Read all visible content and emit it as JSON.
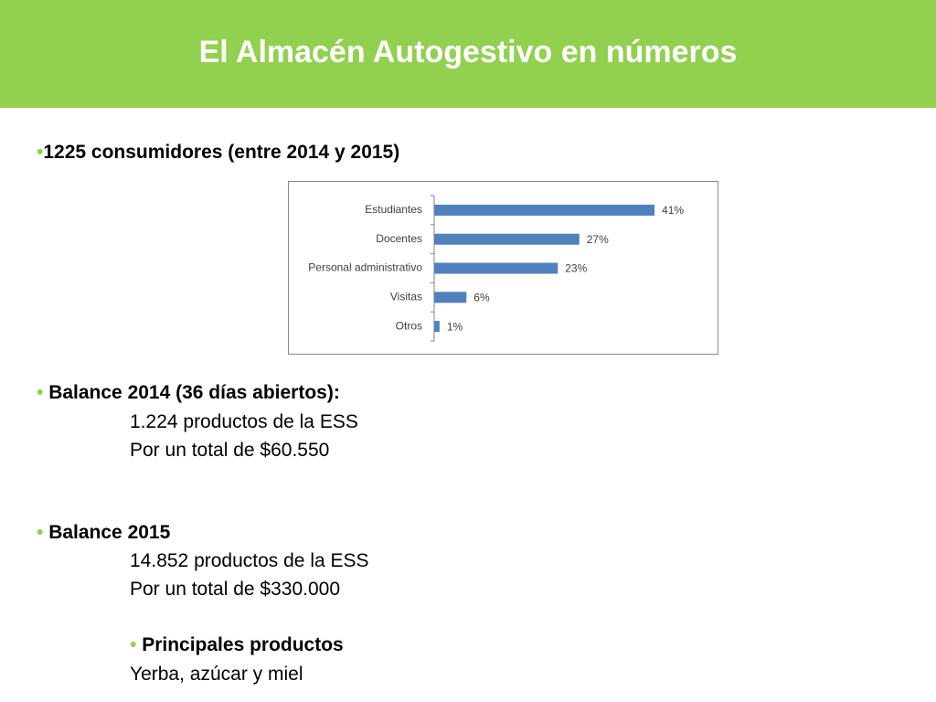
{
  "header": {
    "title": "El Almacén Autogestivo en números"
  },
  "body": {
    "consumers": "1225 consumidores (entre 2014 y 2015)",
    "balance_2014": {
      "heading": "Balance 2014 (36 días abiertos):",
      "lines": [
        "1.224 productos de la ESS",
        "Por un total de $60.550"
      ]
    },
    "balance_2015": {
      "heading": "Balance 2015",
      "lines": [
        "14.852 productos de la ESS",
        "Por un total de $330.000"
      ]
    },
    "products": {
      "heading": "Principales productos",
      "lines": [
        "Yerba, azúcar y miel"
      ]
    }
  },
  "chart_data": {
    "type": "hbar",
    "categories": [
      "Estudiantes",
      "Docentes",
      "Personal administrativo",
      "Visitas",
      "Otros"
    ],
    "values": [
      41,
      27,
      23,
      6,
      1
    ],
    "value_labels": [
      "41%",
      "27%",
      "23%",
      "6%",
      "1%"
    ],
    "color": "#4f81bd"
  }
}
